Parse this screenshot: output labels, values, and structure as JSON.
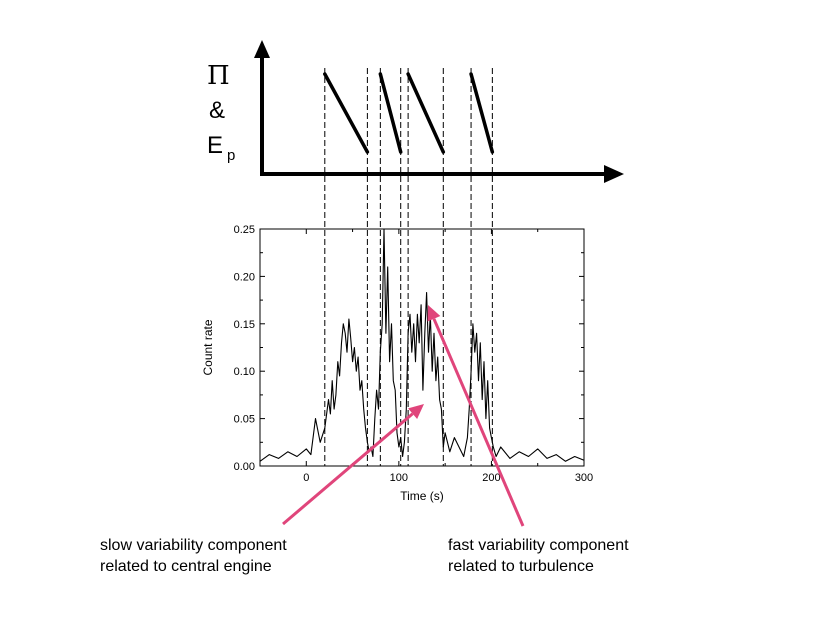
{
  "schematic": {
    "ylabel_lines": [
      "Π",
      "&",
      "E"
    ],
    "ylabel_subscript": "p",
    "segments": [
      [
        20,
        66
      ],
      [
        80,
        102
      ],
      [
        110,
        148
      ],
      [
        178,
        201
      ]
    ]
  },
  "chart_data": {
    "type": "line",
    "title": "",
    "xlabel": "Time (s)",
    "ylabel": "Count rate",
    "xlim": [
      -50,
      300
    ],
    "ylim": [
      0,
      0.25
    ],
    "x_ticks": [
      0,
      100,
      200,
      300
    ],
    "y_ticks": [
      "0.00",
      "0.05",
      "0.10",
      "0.15",
      "0.20",
      "0.25"
    ],
    "grid": false,
    "legend": "none",
    "vertical_markers": [
      20,
      66,
      80,
      102,
      110,
      148,
      178,
      201
    ],
    "x": [
      -50,
      -40,
      -30,
      -20,
      -10,
      0,
      5,
      10,
      15,
      20,
      24,
      26,
      28,
      30,
      32,
      34,
      36,
      38,
      40,
      42,
      44,
      46,
      48,
      50,
      52,
      54,
      56,
      58,
      60,
      62,
      64,
      66,
      68,
      70,
      72,
      74,
      76,
      78,
      80,
      82,
      84,
      86,
      88,
      90,
      92,
      94,
      96,
      98,
      100,
      102,
      104,
      106,
      108,
      110,
      112,
      114,
      116,
      118,
      120,
      122,
      124,
      126,
      128,
      130,
      132,
      134,
      136,
      138,
      140,
      142,
      144,
      146,
      148,
      150,
      155,
      160,
      165,
      170,
      174,
      176,
      178,
      180,
      182,
      184,
      186,
      188,
      190,
      192,
      194,
      196,
      198,
      200,
      202,
      205,
      210,
      220,
      230,
      240,
      250,
      260,
      270,
      280,
      290,
      300
    ],
    "values": [
      0.005,
      0.012,
      0.008,
      0.015,
      0.01,
      0.018,
      0.012,
      0.05,
      0.025,
      0.04,
      0.07,
      0.055,
      0.09,
      0.06,
      0.075,
      0.11,
      0.095,
      0.13,
      0.15,
      0.14,
      0.12,
      0.155,
      0.135,
      0.11,
      0.125,
      0.1,
      0.115,
      0.08,
      0.09,
      0.06,
      0.04,
      0.025,
      0.015,
      0.02,
      0.01,
      0.05,
      0.08,
      0.06,
      0.12,
      0.15,
      0.25,
      0.14,
      0.21,
      0.11,
      0.15,
      0.09,
      0.08,
      0.035,
      0.02,
      0.03,
      0.01,
      0.025,
      0.06,
      0.14,
      0.16,
      0.12,
      0.15,
      0.11,
      0.16,
      0.13,
      0.17,
      0.08,
      0.14,
      0.183,
      0.12,
      0.16,
      0.1,
      0.14,
      0.09,
      0.115,
      0.07,
      0.06,
      0.02,
      0.035,
      0.015,
      0.03,
      0.02,
      0.01,
      0.03,
      0.06,
      0.1,
      0.15,
      0.12,
      0.14,
      0.09,
      0.13,
      0.07,
      0.11,
      0.05,
      0.09,
      0.04,
      0.03,
      0.02,
      0.01,
      0.02,
      0.008,
      0.015,
      0.01,
      0.018,
      0.008,
      0.012,
      0.005,
      0.01,
      0.006
    ]
  },
  "annotations": {
    "accent": "#e0457b",
    "slow": "slow variability component\nrelated to central engine",
    "fast": "fast variability component\nrelated to turbulence"
  }
}
